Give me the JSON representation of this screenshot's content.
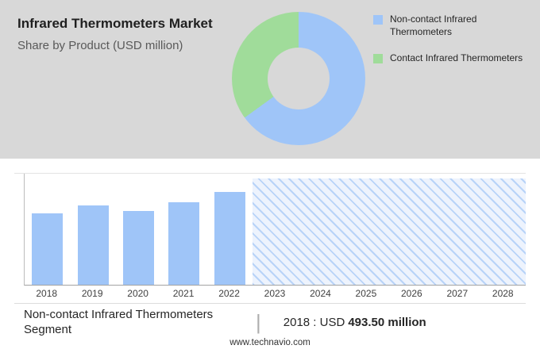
{
  "header": {
    "title": "Infrared Thermometers Market",
    "subtitle": "Share by Product (USD million)"
  },
  "legend": {
    "items": [
      {
        "label": "Non-contact Infrared Thermometers",
        "color": "#9fc5f8"
      },
      {
        "label": "Contact Infrared Thermometers",
        "color": "#a0dc9a"
      }
    ]
  },
  "chart_data": [
    {
      "type": "pie",
      "subtype": "donut",
      "labels": [
        "Non-contact Infrared Thermometers",
        "Contact Infrared Thermometers"
      ],
      "values_pct": [
        65,
        35
      ],
      "colors": [
        "#9fc5f8",
        "#a0dc9a"
      ],
      "title": "Share by Product (USD million)",
      "legend_position": "right"
    },
    {
      "type": "bar",
      "categories": [
        "2018",
        "2019",
        "2020",
        "2021",
        "2022",
        "2023",
        "2024",
        "2025",
        "2026",
        "2027",
        "2028"
      ],
      "values": [
        493.5,
        545,
        510,
        570,
        640,
        null,
        null,
        null,
        null,
        null,
        null
      ],
      "unit": "USD million",
      "values_note": "2018 labeled as 493.50; 2019-2022 estimated from bar heights; 2023-2028 forecast shown as hatched region",
      "forecast_categories": [
        "2023",
        "2024",
        "2025",
        "2026",
        "2027",
        "2028"
      ],
      "bar_color": "#9fc5f8",
      "forecast_hatch_colors": [
        "#b8d3f8",
        "#edf3fd"
      ],
      "grid": "off",
      "xlabel": "",
      "ylabel": ""
    }
  ],
  "footer": {
    "segment_label": "Non-contact Infrared Thermometers Segment",
    "separator": "|",
    "stat_prefix": "2018 : USD",
    "stat_value": "493.50 million",
    "website": "www.technavio.com"
  }
}
